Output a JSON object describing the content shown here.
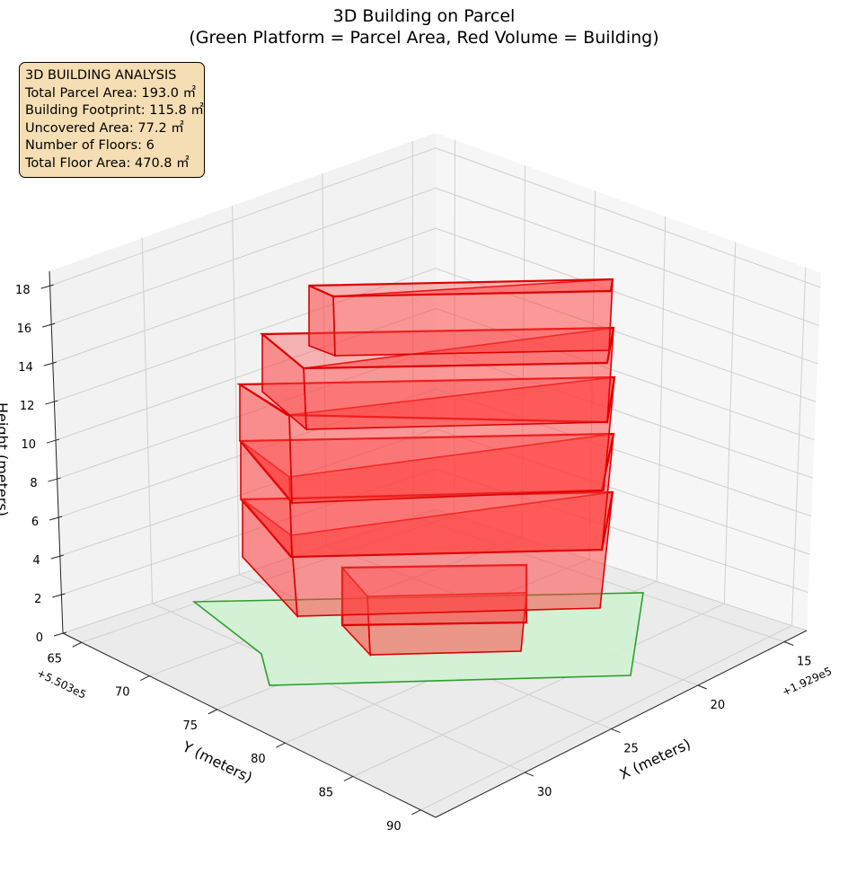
{
  "title": {
    "line1": "3D Building on Parcel",
    "line2": "(Green Platform = Parcel Area, Red Volume = Building)"
  },
  "info_box": {
    "heading": "3D BUILDING ANALYSIS",
    "lines": [
      "Total Parcel Area: 193.0 ㎡",
      "Building Footprint: 115.8 ㎡",
      "Uncovered Area: 77.2 ㎡",
      "Number of Floors: 6",
      "Total Floor Area: 470.8 ㎡"
    ]
  },
  "chart_data": {
    "type": "3d-surface",
    "title": "3D Building on Parcel\n(Green Platform = Parcel Area, Red Volume = Building)",
    "axes": {
      "x": {
        "label": "X (meters)",
        "ticks": [
          "15",
          "20",
          "25",
          "30"
        ],
        "offset": "+1.929e5"
      },
      "y": {
        "label": "Y (meters)",
        "ticks": [
          "65",
          "70",
          "75",
          "80",
          "85",
          "90"
        ],
        "offset": "+5.503e5"
      },
      "z": {
        "label": "Height (meters)",
        "ticks": [
          "0",
          "2",
          "4",
          "6",
          "8",
          "10",
          "12",
          "14",
          "16",
          "18"
        ],
        "zlim": [
          0,
          18
        ]
      }
    },
    "grid": true,
    "parcel": {
      "color": "#2ca02c",
      "fill": "#d3f2d3",
      "height": 0
    },
    "building": {
      "color": "#e00000",
      "fill": "#ff3b3b",
      "floors": 6,
      "floor_top_heights": [
        3,
        6,
        9,
        12,
        15,
        18
      ]
    }
  }
}
